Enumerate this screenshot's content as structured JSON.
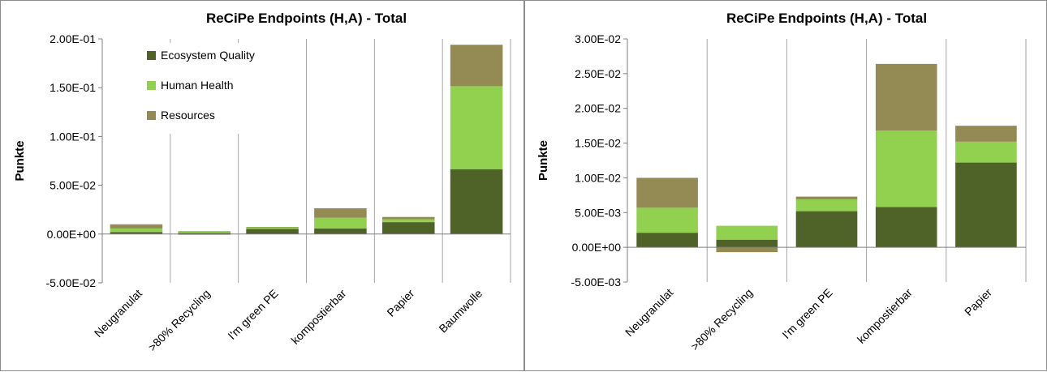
{
  "chart_data": [
    {
      "type": "bar",
      "stacked": true,
      "title": "ReCiPe Endpoints (H,A) - Total",
      "ylabel": "Punkte",
      "xlabel": "",
      "categories": [
        "Neugranulat",
        ">80% Recycling",
        "I'm green PE",
        "kompostierbar",
        "Papier",
        "Baumwolle"
      ],
      "ylim": [
        -0.05,
        0.2
      ],
      "yticks": [
        -0.05,
        0,
        0.05,
        0.1,
        0.15,
        0.2
      ],
      "ytick_labels": [
        "-5.00E-02",
        "0.00E+00",
        "5.00E-02",
        "1.00E-01",
        "1.50E-01",
        "2.00E-01"
      ],
      "grid": "vertical",
      "legend": "top-left",
      "series": [
        {
          "name": "Ecosystem Quality",
          "color": "#4f6228",
          "values": [
            0.0021,
            0.0011,
            0.0052,
            0.0058,
            0.0122,
            0.0665
          ]
        },
        {
          "name": "Human Health",
          "color": "#92d050",
          "values": [
            0.0036,
            0.002,
            0.0017,
            0.011,
            0.003,
            0.085
          ]
        },
        {
          "name": "Resources",
          "color": "#948a54",
          "values": [
            0.0043,
            -0.0007,
            0.0004,
            0.0096,
            0.0023,
            0.0425
          ]
        }
      ]
    },
    {
      "type": "bar",
      "stacked": true,
      "title": "ReCiPe Endpoints (H,A) - Total",
      "ylabel": "Punkte",
      "xlabel": "",
      "categories": [
        "Neugranulat",
        ">80% Recycling",
        "I'm green PE",
        "kompostierbar",
        "Papier"
      ],
      "ylim": [
        -0.005,
        0.03
      ],
      "yticks": [
        -0.005,
        0,
        0.005,
        0.01,
        0.015,
        0.02,
        0.025,
        0.03
      ],
      "ytick_labels": [
        "-5.00E-03",
        "0.00E+00",
        "5.00E-03",
        "1.00E-02",
        "1.50E-02",
        "2.00E-02",
        "2.50E-02",
        "3.00E-02"
      ],
      "grid": "vertical",
      "legend": "none",
      "series": [
        {
          "name": "Ecosystem Quality",
          "color": "#4f6228",
          "values": [
            0.0021,
            0.0011,
            0.0052,
            0.0058,
            0.0122
          ]
        },
        {
          "name": "Human Health",
          "color": "#92d050",
          "values": [
            0.0036,
            0.002,
            0.0017,
            0.011,
            0.003
          ]
        },
        {
          "name": "Resources",
          "color": "#948a54",
          "values": [
            0.0043,
            -0.0007,
            0.0004,
            0.0096,
            0.0023
          ]
        }
      ]
    }
  ]
}
